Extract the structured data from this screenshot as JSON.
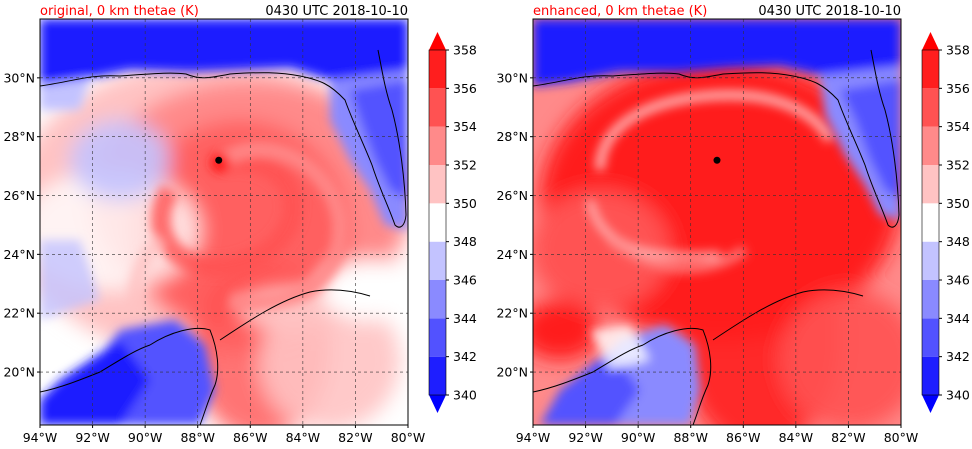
{
  "panels": [
    {
      "id": "original",
      "title": "original, 0 km thetae (K)",
      "time": "0430 UTC 2018-10-10",
      "storm_center": {
        "lon": -87.2,
        "lat": 27.2
      }
    },
    {
      "id": "enhanced",
      "title": "enhanced, 0 km thetae (K)",
      "time": "0430 UTC 2018-10-10",
      "storm_center": {
        "lon": -87.0,
        "lat": 27.2
      }
    }
  ],
  "map": {
    "lon_range": [
      -94,
      -80
    ],
    "lat_range": [
      18.2,
      32.0
    ],
    "lon_ticks": [
      -94,
      -92,
      -90,
      -88,
      -86,
      -84,
      -82,
      -80
    ],
    "lon_tick_labels": [
      "94°W",
      "92°W",
      "90°W",
      "88°W",
      "86°W",
      "84°W",
      "82°W",
      "80°W"
    ],
    "lat_ticks": [
      20,
      22,
      24,
      26,
      28,
      30
    ],
    "lat_tick_labels": [
      "20°N",
      "22°N",
      "24°N",
      "26°N",
      "28°N",
      "30°N"
    ],
    "gridlines": true
  },
  "colorbar": {
    "ticks": [
      340,
      342,
      344,
      346,
      348,
      350,
      352,
      354,
      356,
      358
    ],
    "tick_labels": [
      "340",
      "342",
      "344",
      "346",
      "348",
      "350",
      "352",
      "354",
      "356",
      "358"
    ],
    "colors": [
      "#1e1eff",
      "#5252ff",
      "#8a8aff",
      "#c3c3ff",
      "#ffffff",
      "#ffc3c3",
      "#ff8a8a",
      "#ff5252",
      "#ff1e1e"
    ],
    "extend_low_color": "#0000ff",
    "extend_high_color": "#ff0000"
  },
  "title_color": "#ff0000"
}
